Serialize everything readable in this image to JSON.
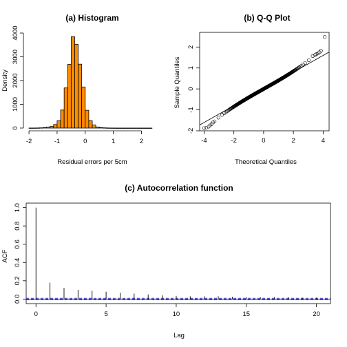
{
  "chart_data": [
    {
      "type": "bar",
      "title": "(a) Histogram",
      "xlabel": "Residual errors per 5cm",
      "ylabel": "Density",
      "xlim": [
        -2.1,
        2.6
      ],
      "ylim": [
        0,
        4000
      ],
      "xticks": [
        "-2",
        "-1",
        "0",
        "1",
        "2"
      ],
      "yticks": [
        "0",
        "1000",
        "2000",
        "3000",
        "4000"
      ],
      "bin_width": 0.125,
      "bin_edges_start": -2.0,
      "values": [
        2,
        3,
        5,
        10,
        20,
        40,
        70,
        150,
        310,
        760,
        1690,
        2680,
        3850,
        3520,
        2690,
        1730,
        750,
        310,
        130,
        45,
        20,
        10,
        5,
        3,
        2,
        1,
        1,
        1,
        1,
        1,
        1,
        1,
        1,
        1,
        1
      ],
      "bar_color": "#FF8C00",
      "grid": false
    },
    {
      "type": "scatter",
      "title": "(b) Q-Q Plot",
      "xlabel": "Theoretical Quantiles",
      "ylabel": "Sample Quantiles",
      "xlim": [
        -4.3,
        4.4
      ],
      "ylim": [
        -2.0,
        2.7
      ],
      "xticks": [
        "-4",
        "-2",
        "0",
        "2",
        "4"
      ],
      "yticks": [
        "-2",
        "-1",
        "0",
        "1",
        "2"
      ],
      "reference_line": {
        "intercept": 0.0,
        "slope": 0.4
      },
      "tail_points": [
        [
          -4.0,
          -1.87
        ],
        [
          -3.85,
          -1.85
        ],
        [
          -3.7,
          -1.8
        ],
        [
          -3.6,
          -1.74
        ],
        [
          -3.5,
          -1.68
        ],
        [
          -3.4,
          -1.6
        ],
        [
          -3.3,
          -1.55
        ],
        [
          3.3,
          1.57
        ],
        [
          3.45,
          1.62
        ],
        [
          3.55,
          1.66
        ],
        [
          3.65,
          1.7
        ],
        [
          3.75,
          1.75
        ],
        [
          3.85,
          1.82
        ],
        [
          4.1,
          2.48
        ]
      ],
      "marker": "open-circle",
      "grid": false
    },
    {
      "type": "bar",
      "title": "(c) Autocorrelation function",
      "xlabel": "Lag",
      "ylabel": "ACF",
      "xlim": [
        -0.7,
        21
      ],
      "ylim": [
        -0.05,
        1.05
      ],
      "xticks": [
        "0",
        "5",
        "10",
        "15",
        "20"
      ],
      "yticks": [
        "0.0",
        "0.2",
        "0.4",
        "0.6",
        "0.8",
        "1.0"
      ],
      "lags": [
        0,
        1,
        2,
        3,
        4,
        5,
        6,
        7,
        8,
        9,
        10,
        11,
        12,
        13,
        14,
        15,
        16,
        17,
        18,
        19,
        20
      ],
      "values": [
        1.0,
        0.18,
        0.12,
        0.1,
        0.09,
        0.08,
        0.07,
        0.06,
        0.05,
        0.04,
        0.035,
        0.03,
        0.03,
        0.03,
        0.025,
        0.02,
        0.02,
        0.02,
        0.02,
        0.015,
        0.015
      ],
      "confidence_band": [
        -0.008,
        0.008
      ],
      "band_color": "#3333CC",
      "grid": false
    }
  ]
}
